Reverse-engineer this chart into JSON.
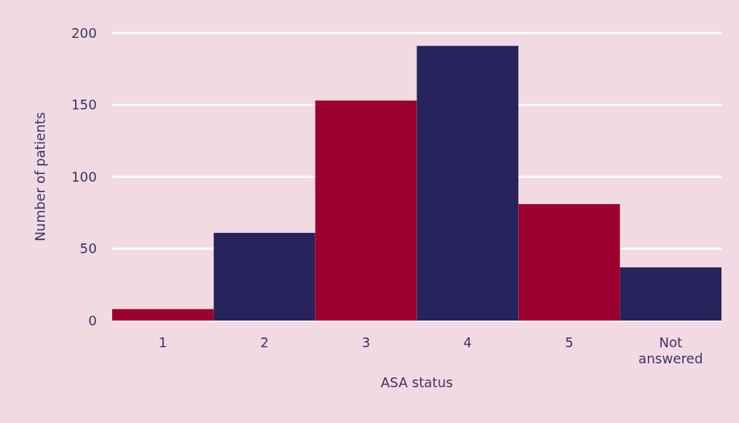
{
  "chart_data": {
    "type": "bar",
    "xlabel": "ASA status",
    "ylabel": "Number of patients",
    "categories": [
      "1",
      "2",
      "3",
      "4",
      "5",
      "Not answered"
    ],
    "values": [
      8,
      61,
      153,
      191,
      81,
      37
    ],
    "colors": [
      "#9b0030",
      "#27235c",
      "#9b0030",
      "#27235c",
      "#9b0030",
      "#27235c"
    ],
    "ylim": [
      0,
      200
    ],
    "yticks": [
      0,
      50,
      100,
      150,
      200
    ],
    "grid": "y"
  }
}
